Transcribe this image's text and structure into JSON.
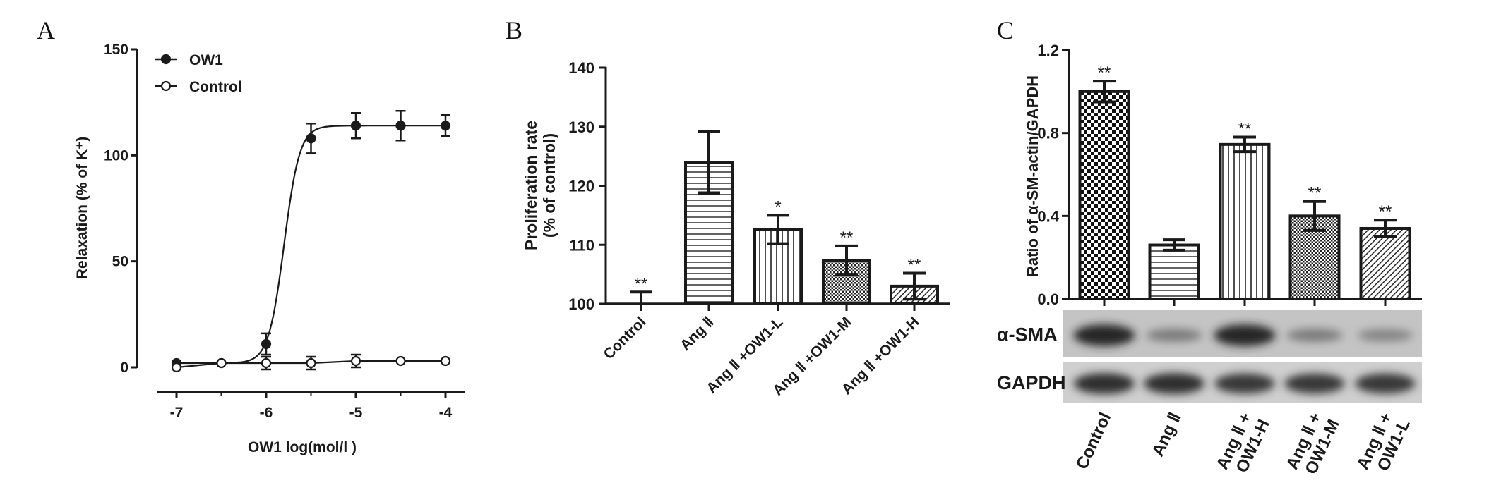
{
  "panels": {
    "a": "A",
    "b": "B",
    "c": "C"
  },
  "chart_data": [
    {
      "type": "line",
      "panel": "A",
      "xlabel": "OW1  log(mol/l )",
      "ylabel": "Relaxation (% of K⁺)",
      "xlim": [
        -7.2,
        -3.9
      ],
      "ylim": [
        0,
        150
      ],
      "xticks": [
        -7,
        -6,
        -5,
        -4
      ],
      "yticks": [
        0,
        50,
        100,
        150
      ],
      "legend_position": "top-left",
      "series": [
        {
          "name": "OW1",
          "marker": "filled-circle",
          "x": [
            -7,
            -6.5,
            -6,
            -5.5,
            -5,
            -4.5,
            -4
          ],
          "y": [
            2,
            2,
            11,
            108,
            114,
            114,
            114
          ],
          "err": [
            0,
            0,
            5,
            7,
            6,
            7,
            5
          ],
          "fit": {
            "bottom": 2,
            "top": 114,
            "logEC50": -5.8,
            "hill": 5
          }
        },
        {
          "name": "Control",
          "marker": "open-circle",
          "x": [
            -7,
            -6.5,
            -6,
            -5.5,
            -5,
            -4.5,
            -4
          ],
          "y": [
            0,
            2,
            2,
            2,
            3,
            3,
            3
          ],
          "err": [
            0,
            0,
            3,
            3,
            3,
            0,
            0
          ]
        }
      ]
    },
    {
      "type": "bar",
      "panel": "B",
      "ylabel": [
        "Proliferation rate",
        "(% of control)"
      ],
      "ylim": [
        100,
        140
      ],
      "yticks": [
        100,
        110,
        120,
        130,
        140
      ],
      "categories": [
        "Control",
        "Ang Ⅱ",
        "Ang Ⅱ +OW1-L",
        "Ang Ⅱ +OW1-M",
        "Ang Ⅱ +OW1-H"
      ],
      "values": [
        100,
        124,
        112.6,
        107.4,
        103
      ],
      "err": [
        2,
        5.2,
        2.4,
        2.4,
        2.2
      ],
      "significance": [
        "**",
        "",
        "*",
        "**",
        "**"
      ],
      "patterns": [
        "none",
        "hlines",
        "vlines",
        "checker-fine",
        "diagonal"
      ]
    },
    {
      "type": "bar",
      "panel": "C",
      "ylabel": "Ratio of α-SM-actin/GAPDH",
      "ylim": [
        0,
        1.2
      ],
      "yticks": [
        "0.0",
        "0.4",
        "0.8",
        "1.2"
      ],
      "categories": [
        [
          "Control"
        ],
        [
          "Ang Ⅱ"
        ],
        [
          "Ang Ⅱ +",
          "OW1-H"
        ],
        [
          "Ang Ⅱ +",
          "OW1-M"
        ],
        [
          "Ang Ⅱ +",
          "OW1-L"
        ]
      ],
      "values": [
        1.0,
        0.26,
        0.745,
        0.4,
        0.34
      ],
      "err": [
        0.05,
        0.025,
        0.035,
        0.07,
        0.04
      ],
      "significance": [
        "**",
        "",
        "**",
        "**",
        "**"
      ],
      "patterns": [
        "checker",
        "hlines",
        "vlines",
        "checker-fine",
        "diagonal"
      ],
      "blot": {
        "rows": [
          {
            "label": "α-SMA",
            "intensity": [
              0.95,
              0.45,
              0.95,
              0.45,
              0.4
            ]
          },
          {
            "label": "GAPDH",
            "intensity": [
              0.9,
              0.9,
              0.85,
              0.85,
              0.85
            ]
          }
        ]
      }
    }
  ]
}
